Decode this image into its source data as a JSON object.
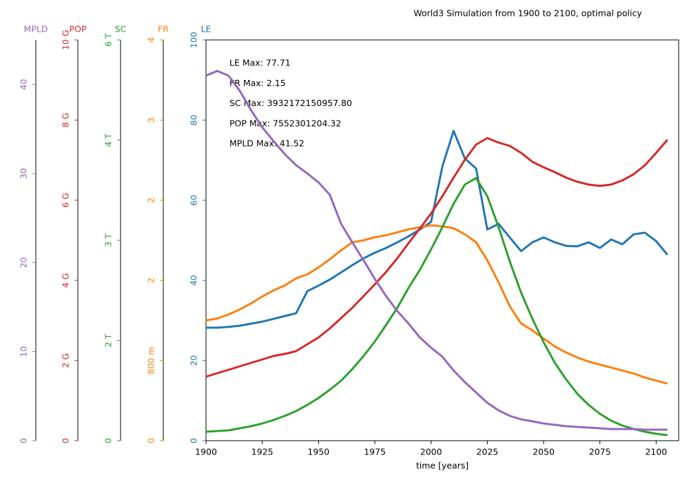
{
  "chart_data": {
    "type": "line",
    "title": "World3 Simulation from 1900 to 2100, optimal policy",
    "x_label": "time [years]",
    "annotations": [
      "LE Max: 77.71",
      "FR Max: 2.15",
      "SC Max: 3932172150957.80",
      "POP Max: 7552301204.32",
      "MPLD Max: 41.52"
    ],
    "x": [
      1900,
      1905,
      1910,
      1915,
      1920,
      1925,
      1930,
      1935,
      1940,
      1945,
      1950,
      1955,
      1960,
      1965,
      1970,
      1975,
      1980,
      1985,
      1990,
      1995,
      2000,
      2005,
      2010,
      2015,
      2020,
      2025,
      2030,
      2035,
      2040,
      2045,
      2050,
      2055,
      2060,
      2065,
      2070,
      2075,
      2080,
      2085,
      2090,
      2095,
      2100,
      2105
    ],
    "xlim": [
      1900,
      2110
    ],
    "xticks": [
      1900,
      1925,
      1950,
      1975,
      2000,
      2025,
      2050,
      2075,
      2100
    ],
    "series": [
      {
        "name": "LE",
        "color": "#1f77b4",
        "ylim": [
          0,
          100
        ],
        "yticks": [
          0,
          20,
          40,
          60,
          80,
          100
        ],
        "values": [
          28.2,
          28.2,
          28.4,
          28.7,
          29.2,
          29.7,
          30.4,
          31.1,
          31.8,
          37.3,
          38.7,
          40.2,
          42.0,
          43.8,
          45.5,
          46.9,
          48.1,
          49.5,
          51.0,
          52.7,
          54.6,
          68.4,
          77.3,
          70.4,
          67.9,
          52.7,
          54.1,
          50.7,
          47.3,
          49.5,
          50.7,
          49.5,
          48.6,
          48.5,
          49.5,
          48.1,
          50.2,
          49.0,
          51.5,
          51.9,
          49.8,
          46.4
        ]
      },
      {
        "name": "FR",
        "color": "#ff7f0e",
        "ylim": [
          0,
          4
        ],
        "yticks": [
          0,
          {
            "value": 0.8,
            "label": "800 m"
          },
          {
            "value": 1.6,
            "label": "2"
          },
          {
            "value": 2.4,
            "label": "2"
          },
          {
            "value": 3.2,
            "label": "3"
          },
          4
        ],
        "values": [
          1.2,
          1.22,
          1.26,
          1.31,
          1.37,
          1.44,
          1.5,
          1.55,
          1.62,
          1.66,
          1.73,
          1.81,
          1.9,
          1.98,
          2.0,
          2.03,
          2.05,
          2.08,
          2.11,
          2.13,
          2.15,
          2.14,
          2.12,
          2.06,
          1.98,
          1.8,
          1.58,
          1.34,
          1.17,
          1.1,
          1.02,
          0.94,
          0.88,
          0.83,
          0.79,
          0.76,
          0.73,
          0.7,
          0.67,
          0.63,
          0.6,
          0.57
        ]
      },
      {
        "name": "SC",
        "color": "#2ca02c",
        "ylim": [
          0,
          6000000000000.0
        ],
        "yticks": [
          0,
          {
            "value": 1500000000000.0,
            "label": "2 T"
          },
          {
            "value": 3000000000000.0,
            "label": "3 T"
          },
          {
            "value": 4500000000000.0,
            "label": "4 T"
          },
          {
            "value": 6000000000000.0,
            "label": "6 T"
          }
        ],
        "values": [
          134000000000.0,
          144000000000.0,
          155000000000.0,
          186000000000.0,
          216000000000.0,
          258000000000.0,
          309000000000.0,
          371000000000.0,
          443000000000.0,
          536000000000.0,
          639000000000.0,
          763000000000.0,
          897000000000.0,
          1072000000000.0,
          1268000000000.0,
          1485000000000.0,
          1732000000000.0,
          1990000000000.0,
          2289000000000.0,
          2557000000000.0,
          2866000000000.0,
          3196000000000.0,
          3546000000000.0,
          3835000000000.0,
          3932000000000.0,
          3660000000000.0,
          3196000000000.0,
          2680000000000.0,
          2216000000000.0,
          1825000000000.0,
          1474000000000.0,
          1165000000000.0,
          918000000000.0,
          701000000000.0,
          536000000000.0,
          402000000000.0,
          299000000000.0,
          227000000000.0,
          175000000000.0,
          134000000000.0,
          103000000000.0,
          82000000000.0
        ]
      },
      {
        "name": "POP",
        "color": "#d62728",
        "ylim": [
          0,
          10000000000.0
        ],
        "yticks": [
          0,
          {
            "value": 2000000000.0,
            "label": "2 G"
          },
          {
            "value": 4000000000.0,
            "label": "4 G"
          },
          {
            "value": 6000000000.0,
            "label": "6 G"
          },
          {
            "value": 8000000000.0,
            "label": "8 G"
          },
          {
            "value": 10000000000.0,
            "label": "10 G"
          }
        ],
        "values": [
          1598000000.0,
          1684000000.0,
          1770000000.0,
          1856000000.0,
          1942000000.0,
          2027000000.0,
          2113000000.0,
          2165000000.0,
          2234000000.0,
          2405000000.0,
          2577000000.0,
          2801000000.0,
          3058000000.0,
          3316000000.0,
          3608000000.0,
          3900000000.0,
          4210000000.0,
          4553000000.0,
          4931000000.0,
          5292000000.0,
          5670000000.0,
          6100000000.0,
          6564000000.0,
          7010000000.0,
          7388000000.0,
          7552000000.0,
          7440000000.0,
          7354000000.0,
          7182000000.0,
          6959000000.0,
          6821000000.0,
          6701000000.0,
          6564000000.0,
          6460000000.0,
          6392000000.0,
          6357000000.0,
          6392000000.0,
          6495000000.0,
          6649000000.0,
          6873000000.0,
          7182000000.0,
          7509000000.0
        ]
      },
      {
        "name": "MPLD",
        "color": "#9467bd",
        "ylim": [
          0,
          45
        ],
        "yticks": [
          0,
          10,
          20,
          30,
          40
        ],
        "values": [
          40.99,
          41.52,
          40.99,
          39.29,
          37.12,
          35.19,
          33.64,
          32.17,
          30.94,
          30.01,
          29.0,
          27.61,
          24.36,
          22.27,
          20.26,
          18.17,
          16.24,
          14.54,
          13.15,
          11.6,
          10.44,
          9.44,
          7.89,
          6.57,
          5.41,
          4.25,
          3.4,
          2.78,
          2.4,
          2.17,
          1.93,
          1.78,
          1.62,
          1.55,
          1.47,
          1.39,
          1.31,
          1.31,
          1.31,
          1.24,
          1.24,
          1.24
        ]
      }
    ]
  }
}
